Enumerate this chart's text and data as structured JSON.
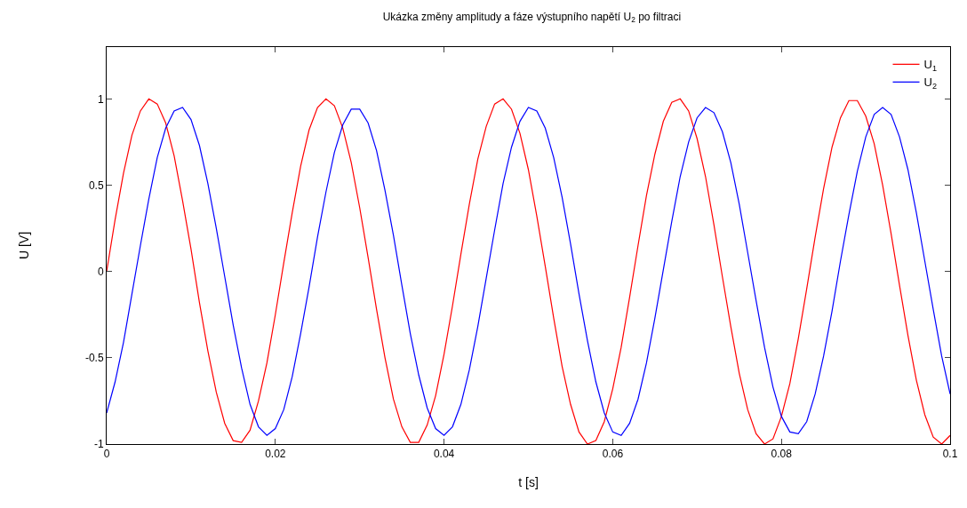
{
  "chart_data": {
    "type": "line",
    "title": "Ukázka změny amplitudy a fáze výstupního napětí U$_{2}$ po filtraci",
    "xlabel": "t [s]",
    "ylabel": "U [V]",
    "x": [
      0,
      0.001,
      0.002,
      0.003,
      0.004,
      0.005,
      0.006,
      0.007,
      0.008,
      0.009,
      0.01,
      0.011,
      0.012,
      0.013,
      0.014,
      0.015,
      0.016,
      0.017,
      0.018,
      0.019,
      0.02,
      0.021,
      0.022,
      0.023,
      0.024,
      0.025,
      0.026,
      0.027,
      0.028,
      0.029,
      0.03,
      0.031,
      0.032,
      0.033,
      0.034,
      0.035,
      0.036,
      0.037,
      0.038,
      0.039,
      0.04,
      0.041,
      0.042,
      0.043,
      0.044,
      0.045,
      0.046,
      0.047,
      0.048,
      0.049,
      0.05,
      0.051,
      0.052,
      0.053,
      0.054,
      0.055,
      0.056,
      0.057,
      0.058,
      0.059,
      0.06,
      0.061,
      0.062,
      0.063,
      0.064,
      0.065,
      0.066,
      0.067,
      0.068,
      0.069,
      0.07,
      0.071,
      0.072,
      0.073,
      0.074,
      0.075,
      0.076,
      0.077,
      0.078,
      0.079,
      0.08,
      0.081,
      0.082,
      0.083,
      0.084,
      0.085,
      0.086,
      0.087,
      0.088,
      0.089,
      0.09,
      0.091,
      0.092,
      0.093,
      0.094,
      0.095,
      0.096,
      0.097,
      0.098,
      0.099,
      0.1
    ],
    "series": [
      {
        "name": "U$_{1}$",
        "color": "#ff0000",
        "values": [
          0,
          0.3,
          0.57,
          0.79,
          0.93,
          1.0,
          0.97,
          0.86,
          0.67,
          0.41,
          0.13,
          -0.18,
          -0.46,
          -0.7,
          -0.88,
          -0.98,
          -0.99,
          -0.92,
          -0.75,
          -0.53,
          -0.25,
          0.05,
          0.34,
          0.61,
          0.82,
          0.95,
          1.0,
          0.96,
          0.83,
          0.63,
          0.37,
          0.08,
          -0.22,
          -0.5,
          -0.74,
          -0.9,
          -0.99,
          -0.99,
          -0.89,
          -0.72,
          -0.48,
          -0.2,
          0.1,
          0.39,
          0.65,
          0.84,
          0.97,
          1.0,
          0.94,
          0.8,
          0.59,
          0.32,
          0.03,
          -0.27,
          -0.55,
          -0.77,
          -0.93,
          -1.0,
          -0.98,
          -0.87,
          -0.68,
          -0.44,
          -0.15,
          0.15,
          0.44,
          0.68,
          0.87,
          0.98,
          1.0,
          0.93,
          0.77,
          0.55,
          0.27,
          -0.03,
          -0.32,
          -0.59,
          -0.8,
          -0.94,
          -1.0,
          -0.97,
          -0.84,
          -0.65,
          -0.39,
          -0.1,
          0.2,
          0.48,
          0.72,
          0.89,
          0.99,
          0.99,
          0.9,
          0.74,
          0.5,
          0.22,
          -0.08,
          -0.37,
          -0.63,
          -0.83,
          -0.96,
          -1.0,
          -0.95
        ]
      },
      {
        "name": "U$_{2}$",
        "color": "#0000ff",
        "values": [
          -0.82,
          -0.64,
          -0.41,
          -0.13,
          0.15,
          0.42,
          0.66,
          0.83,
          0.93,
          0.95,
          0.88,
          0.73,
          0.51,
          0.25,
          -0.03,
          -0.31,
          -0.56,
          -0.77,
          -0.9,
          -0.95,
          -0.91,
          -0.8,
          -0.61,
          -0.36,
          -0.09,
          0.2,
          0.46,
          0.69,
          0.85,
          0.94,
          0.94,
          0.86,
          0.7,
          0.47,
          0.21,
          -0.08,
          -0.36,
          -0.6,
          -0.79,
          -0.91,
          -0.95,
          -0.9,
          -0.77,
          -0.57,
          -0.32,
          -0.04,
          0.24,
          0.51,
          0.72,
          0.87,
          0.95,
          0.93,
          0.83,
          0.66,
          0.43,
          0.16,
          -0.13,
          -0.4,
          -0.64,
          -0.82,
          -0.93,
          -0.95,
          -0.88,
          -0.74,
          -0.53,
          -0.27,
          0.01,
          0.29,
          0.55,
          0.75,
          0.89,
          0.95,
          0.92,
          0.81,
          0.63,
          0.39,
          0.11,
          -0.17,
          -0.44,
          -0.67,
          -0.84,
          -0.93,
          -0.94,
          -0.87,
          -0.71,
          -0.49,
          -0.23,
          0.06,
          0.33,
          0.58,
          0.78,
          0.91,
          0.95,
          0.91,
          0.78,
          0.59,
          0.34,
          0.06,
          -0.22,
          -0.49,
          -0.71
        ]
      }
    ],
    "xlim": [
      0,
      0.1
    ],
    "xticks": [
      0,
      0.02,
      0.04,
      0.06,
      0.08,
      {
        "value": 0.1,
        "label": "0.1"
      }
    ],
    "ylim": [
      -1,
      1.3
    ],
    "yticks": [
      -1,
      -0.5,
      0,
      0.5,
      1
    ],
    "grid": false,
    "legend": "top right",
    "marker": "none",
    "line_style": "solid"
  }
}
